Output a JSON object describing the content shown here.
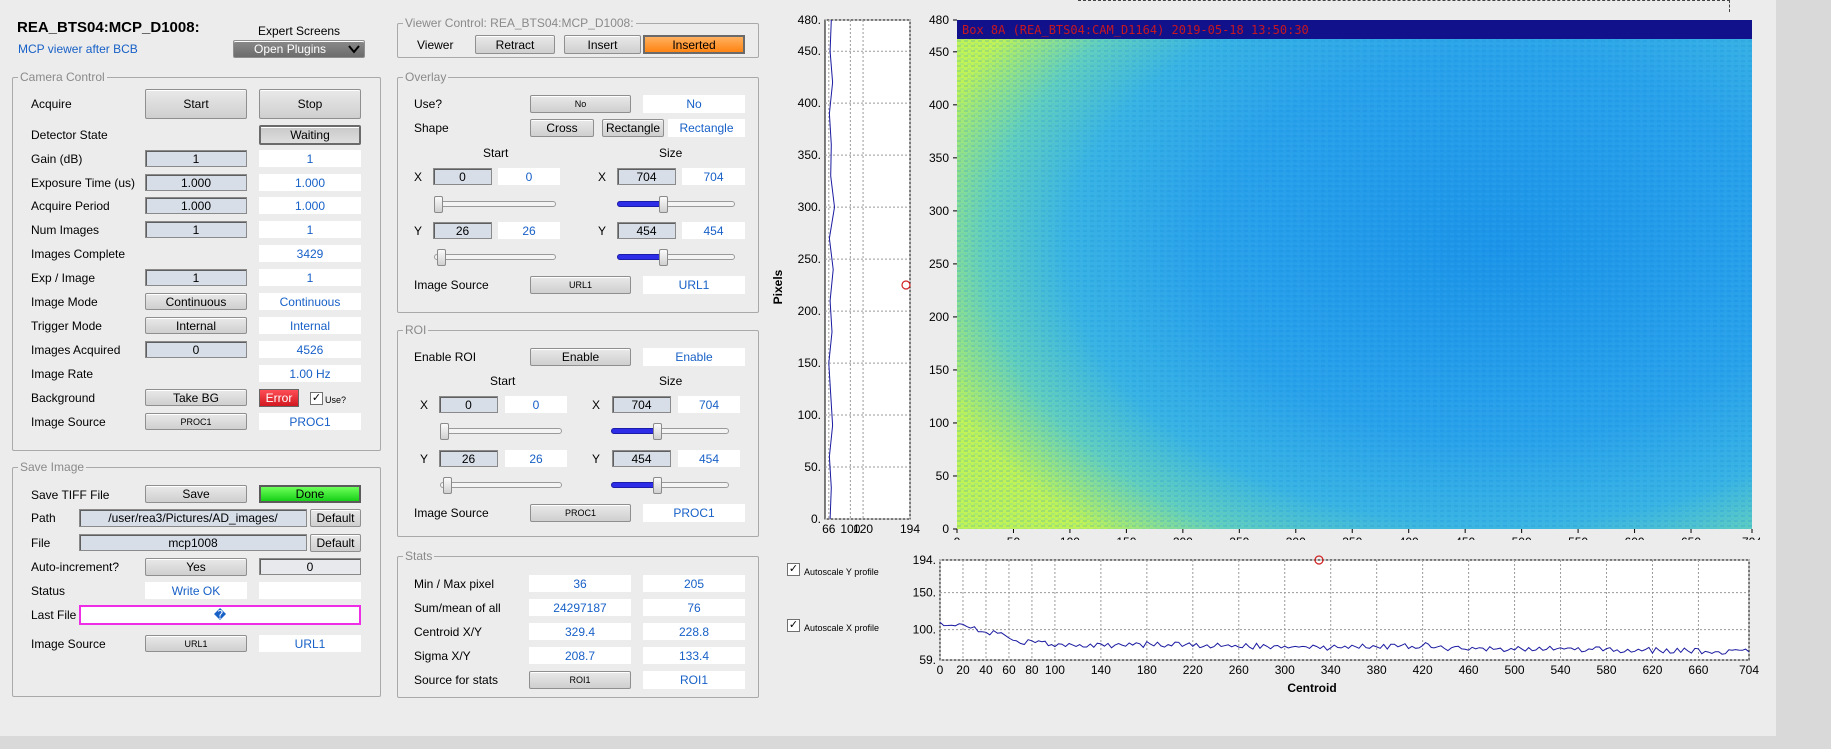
{
  "header": {
    "title": "REA_BTS04:MCP_D1008:",
    "subtitle": "MCP viewer after BCB",
    "expert_label": "Expert Screens",
    "plugins_label": "Open Plugins"
  },
  "camera": {
    "title": "Camera Control",
    "acquire_label": "Acquire",
    "start": "Start",
    "stop": "Stop",
    "detector_state_label": "Detector State",
    "detector_state": "Waiting",
    "rows": [
      {
        "label": "Gain (dB)",
        "set": "1",
        "rb": "1"
      },
      {
        "label": "Exposure Time (us)",
        "set": "1.000",
        "rb": "1.000"
      },
      {
        "label": "Acquire Period",
        "set": "1.000",
        "rb": "1.000"
      },
      {
        "label": "Num Images",
        "set": "1",
        "rb": "1"
      }
    ],
    "images_complete_label": "Images Complete",
    "images_complete": "3429",
    "exp_image_label": "Exp / Image",
    "exp_image_set": "1",
    "exp_image_rb": "1",
    "image_mode_label": "Image Mode",
    "image_mode": "Continuous",
    "image_mode_rb": "Continuous",
    "trigger_mode_label": "Trigger Mode",
    "trigger_mode": "Internal",
    "trigger_mode_rb": "Internal",
    "images_acquired_label": "Images Acquired",
    "images_acquired_set": "0",
    "images_acquired_rb": "4526",
    "image_rate_label": "Image Rate",
    "image_rate": "1.00 Hz",
    "background_label": "Background",
    "take_bg": "Take BG",
    "bg_status": "Error",
    "use_label": "Use?",
    "image_source_label": "Image Source",
    "image_source": "PROC1",
    "image_source_rb": "PROC1"
  },
  "save": {
    "title": "Save Image",
    "tiff_label": "Save TIFF File",
    "save_button": "Save",
    "save_status": "Done",
    "path_label": "Path",
    "path": "/user/rea3/Pictures/AD_images/",
    "default": "Default",
    "file_label": "File",
    "file": "mcp1008",
    "autoinc_label": "Auto-increment?",
    "autoinc": "Yes",
    "autoinc_value": "0",
    "status_label": "Status",
    "status": "Write OK",
    "last_file_label": "Last File",
    "last_file": "�",
    "image_source_label": "Image Source",
    "image_source": "URL1",
    "image_source_rb": "URL1"
  },
  "viewer": {
    "title": "Viewer Control: REA_BTS04:MCP_D1008:",
    "viewer_label": "Viewer",
    "retract": "Retract",
    "insert": "Insert",
    "status": "Inserted"
  },
  "overlay": {
    "title": "Overlay",
    "use_label": "Use?",
    "use_button": "No",
    "use_rb": "No",
    "shape_label": "Shape",
    "cross": "Cross",
    "rectangle": "Rectangle",
    "shape_rb": "Rectangle",
    "start_label": "Start",
    "size_label": "Size",
    "x_label": "X",
    "y_label": "Y",
    "start_x": "0",
    "start_x_rb": "0",
    "size_x": "704",
    "size_x_rb": "704",
    "start_y": "26",
    "start_y_rb": "26",
    "size_y": "454",
    "size_y_rb": "454",
    "image_source_label": "Image Source",
    "image_source": "URL1",
    "image_source_rb": "URL1"
  },
  "roi": {
    "title": "ROI",
    "enable_label": "Enable ROI",
    "enable_button": "Enable",
    "enable_rb": "Enable",
    "start_label": "Start",
    "size_label": "Size",
    "x_label": "X",
    "y_label": "Y",
    "start_x": "0",
    "start_x_rb": "0",
    "size_x": "704",
    "size_x_rb": "704",
    "start_y": "26",
    "start_y_rb": "26",
    "size_y": "454",
    "size_y_rb": "454",
    "image_source_label": "Image Source",
    "image_source": "PROC1",
    "image_source_rb": "PROC1"
  },
  "stats": {
    "title": "Stats",
    "rows": [
      {
        "label": "Min / Max pixel",
        "a": "36",
        "b": "205"
      },
      {
        "label": "Sum/mean of all",
        "a": "24297187",
        "b": "76"
      },
      {
        "label": "Centroid X/Y",
        "a": "329.4",
        "b": "228.8"
      },
      {
        "label": "Sigma X/Y",
        "a": "208.7",
        "b": "133.4"
      }
    ],
    "source_label": "Source for stats",
    "source": "ROI1",
    "source_rb": "ROI1"
  },
  "image": {
    "overlay_text": "Box 8A (REA_BTS04:CAM_D1164) 2019-05-18 13:50:30",
    "x_ticks": [
      "0",
      "50",
      "100",
      "150",
      "200",
      "250",
      "300",
      "350",
      "400",
      "450",
      "500",
      "550",
      "600",
      "650",
      "704"
    ],
    "y_ticks": [
      "0",
      "50",
      "100",
      "150",
      "200",
      "250",
      "300",
      "350",
      "400",
      "450",
      "480"
    ]
  },
  "profiles": {
    "autoscale_y": "Autoscale Y profile",
    "autoscale_x": "Autoscale X profile",
    "y_axis_label": "Pixels",
    "x_axis_label": "Centroid"
  },
  "colors": {
    "accent": "#1760c7",
    "inserted": "#ff8c1a",
    "done": "#1ee01e",
    "error": "#e8212a"
  },
  "chart_data": [
    {
      "type": "line",
      "title": "",
      "xlabel": "Centroid",
      "ylabel": "",
      "x_ticks": [
        "0",
        "20",
        "40",
        "60",
        "80",
        "100",
        "140",
        "180",
        "220",
        "260",
        "300",
        "340",
        "380",
        "420",
        "460",
        "500",
        "540",
        "580",
        "620",
        "660",
        "704"
      ],
      "y_ticks": [
        "59.",
        "100.",
        "150.",
        "194."
      ],
      "xlim": [
        0,
        704
      ],
      "ylim": [
        59,
        194
      ],
      "grid": true,
      "x": [
        0,
        10,
        20,
        30,
        40,
        50,
        60,
        70,
        80,
        100,
        140,
        180,
        220,
        260,
        300,
        340,
        380,
        420,
        425,
        430,
        460,
        500,
        540,
        580,
        620,
        660,
        704
      ],
      "values": [
        110,
        106,
        104,
        100,
        98,
        94,
        88,
        84,
        82,
        80,
        79,
        80,
        79,
        78,
        77,
        76,
        77,
        77,
        83,
        76,
        75,
        74,
        74,
        73,
        72,
        71,
        70
      ]
    },
    {
      "type": "line",
      "title": "",
      "xlabel": "",
      "ylabel": "Pixels",
      "x_ticks": [
        "66",
        "100",
        "120",
        "194"
      ],
      "y_ticks": [
        "0.",
        "50.",
        "100.",
        "150.",
        "200.",
        "250.",
        "300.",
        "350.",
        "400.",
        "450.",
        "480."
      ],
      "xlim": [
        60,
        194
      ],
      "ylim": [
        0,
        480
      ],
      "grid": true,
      "y": [
        0,
        30,
        60,
        90,
        120,
        150,
        180,
        210,
        240,
        270,
        300,
        330,
        360,
        390,
        420,
        450,
        480
      ],
      "values": [
        68,
        70,
        67,
        72,
        69,
        66,
        71,
        68,
        73,
        67,
        75,
        69,
        70,
        67,
        72,
        68,
        70
      ]
    }
  ]
}
